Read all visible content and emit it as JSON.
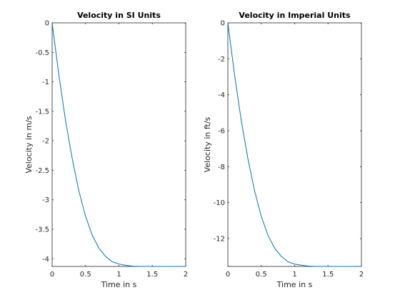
{
  "chart_data": [
    {
      "type": "line",
      "title": "Velocity in SI Units",
      "xlabel": "Time in s",
      "ylabel": "Velocity in m/s",
      "xlim": [
        0,
        2
      ],
      "ylim": [
        -4.13,
        0
      ],
      "xticks": [
        0,
        0.5,
        1,
        1.5,
        2
      ],
      "xtick_labels": [
        "0",
        "0.5",
        "1",
        "1.5",
        "2"
      ],
      "yticks": [
        0,
        -0.5,
        -1,
        -1.5,
        -2,
        -2.5,
        -3,
        -3.5,
        -4
      ],
      "ytick_labels": [
        "0",
        "-0.5",
        "-1",
        "-1.5",
        "-2",
        "-2.5",
        "-3",
        "-3.5",
        "-4"
      ],
      "grid": false,
      "color": "#0072bd",
      "series": [
        {
          "x": [
            0,
            0.1,
            0.2,
            0.3,
            0.4,
            0.5,
            0.6,
            0.7,
            0.8,
            0.9,
            1.0,
            1.1,
            1.2,
            1.3,
            1.4,
            1.5,
            1.6,
            1.7,
            1.8,
            1.9,
            2.0
          ],
          "y": [
            0,
            -0.88,
            -1.65,
            -2.3,
            -2.85,
            -3.28,
            -3.6,
            -3.82,
            -3.96,
            -4.05,
            -4.09,
            -4.11,
            -4.125,
            -4.13,
            -4.13,
            -4.13,
            -4.13,
            -4.13,
            -4.13,
            -4.13,
            -4.13
          ]
        }
      ]
    },
    {
      "type": "line",
      "title": "Velocity in Imperial Units",
      "xlabel": "Time in s",
      "ylabel": "Velocity in ft/s",
      "xlim": [
        0,
        2
      ],
      "ylim": [
        -13.55,
        0
      ],
      "xticks": [
        0,
        0.5,
        1,
        1.5,
        2
      ],
      "xtick_labels": [
        "0",
        "0.5",
        "1",
        "1.5",
        "2"
      ],
      "yticks": [
        0,
        -2,
        -4,
        -6,
        -8,
        -10,
        -12
      ],
      "ytick_labels": [
        "0",
        "-2",
        "-4",
        "-6",
        "-8",
        "-10",
        "-12"
      ],
      "grid": false,
      "color": "#0072bd",
      "series": [
        {
          "x": [
            0,
            0.1,
            0.2,
            0.3,
            0.4,
            0.5,
            0.6,
            0.7,
            0.8,
            0.9,
            1.0,
            1.1,
            1.2,
            1.3,
            1.4,
            1.5,
            1.6,
            1.7,
            1.8,
            1.9,
            2.0
          ],
          "y": [
            0,
            -2.89,
            -5.41,
            -7.55,
            -9.35,
            -10.76,
            -11.81,
            -12.53,
            -12.99,
            -13.29,
            -13.42,
            -13.48,
            -13.53,
            -13.55,
            -13.55,
            -13.55,
            -13.55,
            -13.55,
            -13.55,
            -13.55,
            -13.55
          ]
        }
      ]
    }
  ]
}
